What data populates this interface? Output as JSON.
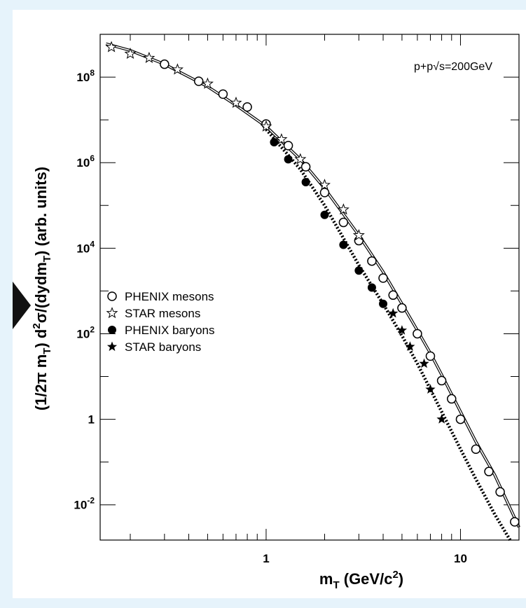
{
  "chart_data": {
    "type": "scatter",
    "title": "",
    "annotation": "p+p√s=200GeV",
    "xlabel": "m_T (GeV/c^2)",
    "ylabel": "(1/2π m_T) d²σ/(dydm_T) (arb. units)",
    "x_scale": "log",
    "y_scale": "log",
    "xlim": [
      0.14,
      20
    ],
    "ylim": [
      0.0015,
      1000000000
    ],
    "x_ticks": [
      {
        "value": 1,
        "label": "1"
      },
      {
        "value": 10,
        "label": "10"
      }
    ],
    "y_ticks": [
      {
        "value": 0.01,
        "label": "10",
        "exp": "-2"
      },
      {
        "value": 1,
        "label": "1",
        "exp": ""
      },
      {
        "value": 100,
        "label": "10",
        "exp": "2"
      },
      {
        "value": 10000,
        "label": "10",
        "exp": "4"
      },
      {
        "value": 1000000,
        "label": "10",
        "exp": "6"
      },
      {
        "value": 100000000,
        "label": "10",
        "exp": "8"
      }
    ],
    "legend_position": "middle-left",
    "series": [
      {
        "name": "PHENIX mesons",
        "marker": "open-circle",
        "x": [
          0.3,
          0.45,
          0.6,
          0.8,
          1.0,
          1.3,
          1.6,
          2.0,
          2.5,
          3.0,
          3.5,
          4.0,
          4.5,
          5.0,
          6.0,
          7.0,
          8.0,
          9.0,
          10.0,
          12.0,
          14.0,
          16.0,
          19.0
        ],
        "y": [
          200000000,
          80000000,
          40000000,
          20000000,
          8000000,
          2500000,
          800000,
          200000,
          40000,
          15000,
          5000,
          2000,
          800,
          400,
          100,
          30,
          8,
          3,
          1,
          0.2,
          0.06,
          0.02,
          0.004
        ]
      },
      {
        "name": "STAR mesons",
        "marker": "open-star",
        "x": [
          0.16,
          0.2,
          0.25,
          0.35,
          0.5,
          0.7,
          1.0,
          1.2,
          1.5,
          2.0,
          2.5,
          3.0
        ],
        "y": [
          500000000,
          350000000,
          280000000,
          150000000,
          70000000,
          25000000,
          7000000,
          3500000,
          1200000,
          300000,
          80000,
          20000
        ]
      },
      {
        "name": "PHENIX baryons",
        "marker": "filled-circle",
        "x": [
          1.1,
          1.3,
          1.6,
          2.0,
          2.5,
          3.0,
          3.5,
          4.0
        ],
        "y": [
          3000000,
          1200000,
          350000,
          60000,
          12000,
          3000,
          1200,
          500
        ]
      },
      {
        "name": "STAR baryons",
        "marker": "filled-star",
        "x": [
          4.5,
          5.0,
          5.5,
          6.5,
          7.0,
          8.0
        ],
        "y": [
          300,
          120,
          50,
          20,
          5,
          1
        ]
      }
    ],
    "fit_curves": [
      {
        "style": "solid",
        "x": [
          0.15,
          0.2,
          0.3,
          0.5,
          0.7,
          1.0,
          1.5,
          2.0,
          3.0,
          4.0,
          5.0,
          6.0,
          7.0,
          8.0,
          10.0,
          12.0,
          15.0,
          20.0
        ],
        "y": [
          600000000,
          420000000,
          200000000,
          60000000,
          22000000,
          7000000,
          1200000,
          250000,
          20000,
          2800,
          500,
          120,
          35,
          11,
          1.5,
          0.3,
          0.05,
          0.003
        ]
      },
      {
        "style": "dotted",
        "x": [
          1.0,
          1.5,
          2.0,
          3.0,
          4.0,
          5.0,
          6.0,
          7.0,
          8.0,
          10.0,
          12.0,
          15.0,
          18.0
        ],
        "y": [
          6000000,
          700000,
          100000,
          4000,
          500,
          90,
          20,
          5,
          1.5,
          0.2,
          0.04,
          0.006,
          0.0015
        ]
      }
    ]
  }
}
